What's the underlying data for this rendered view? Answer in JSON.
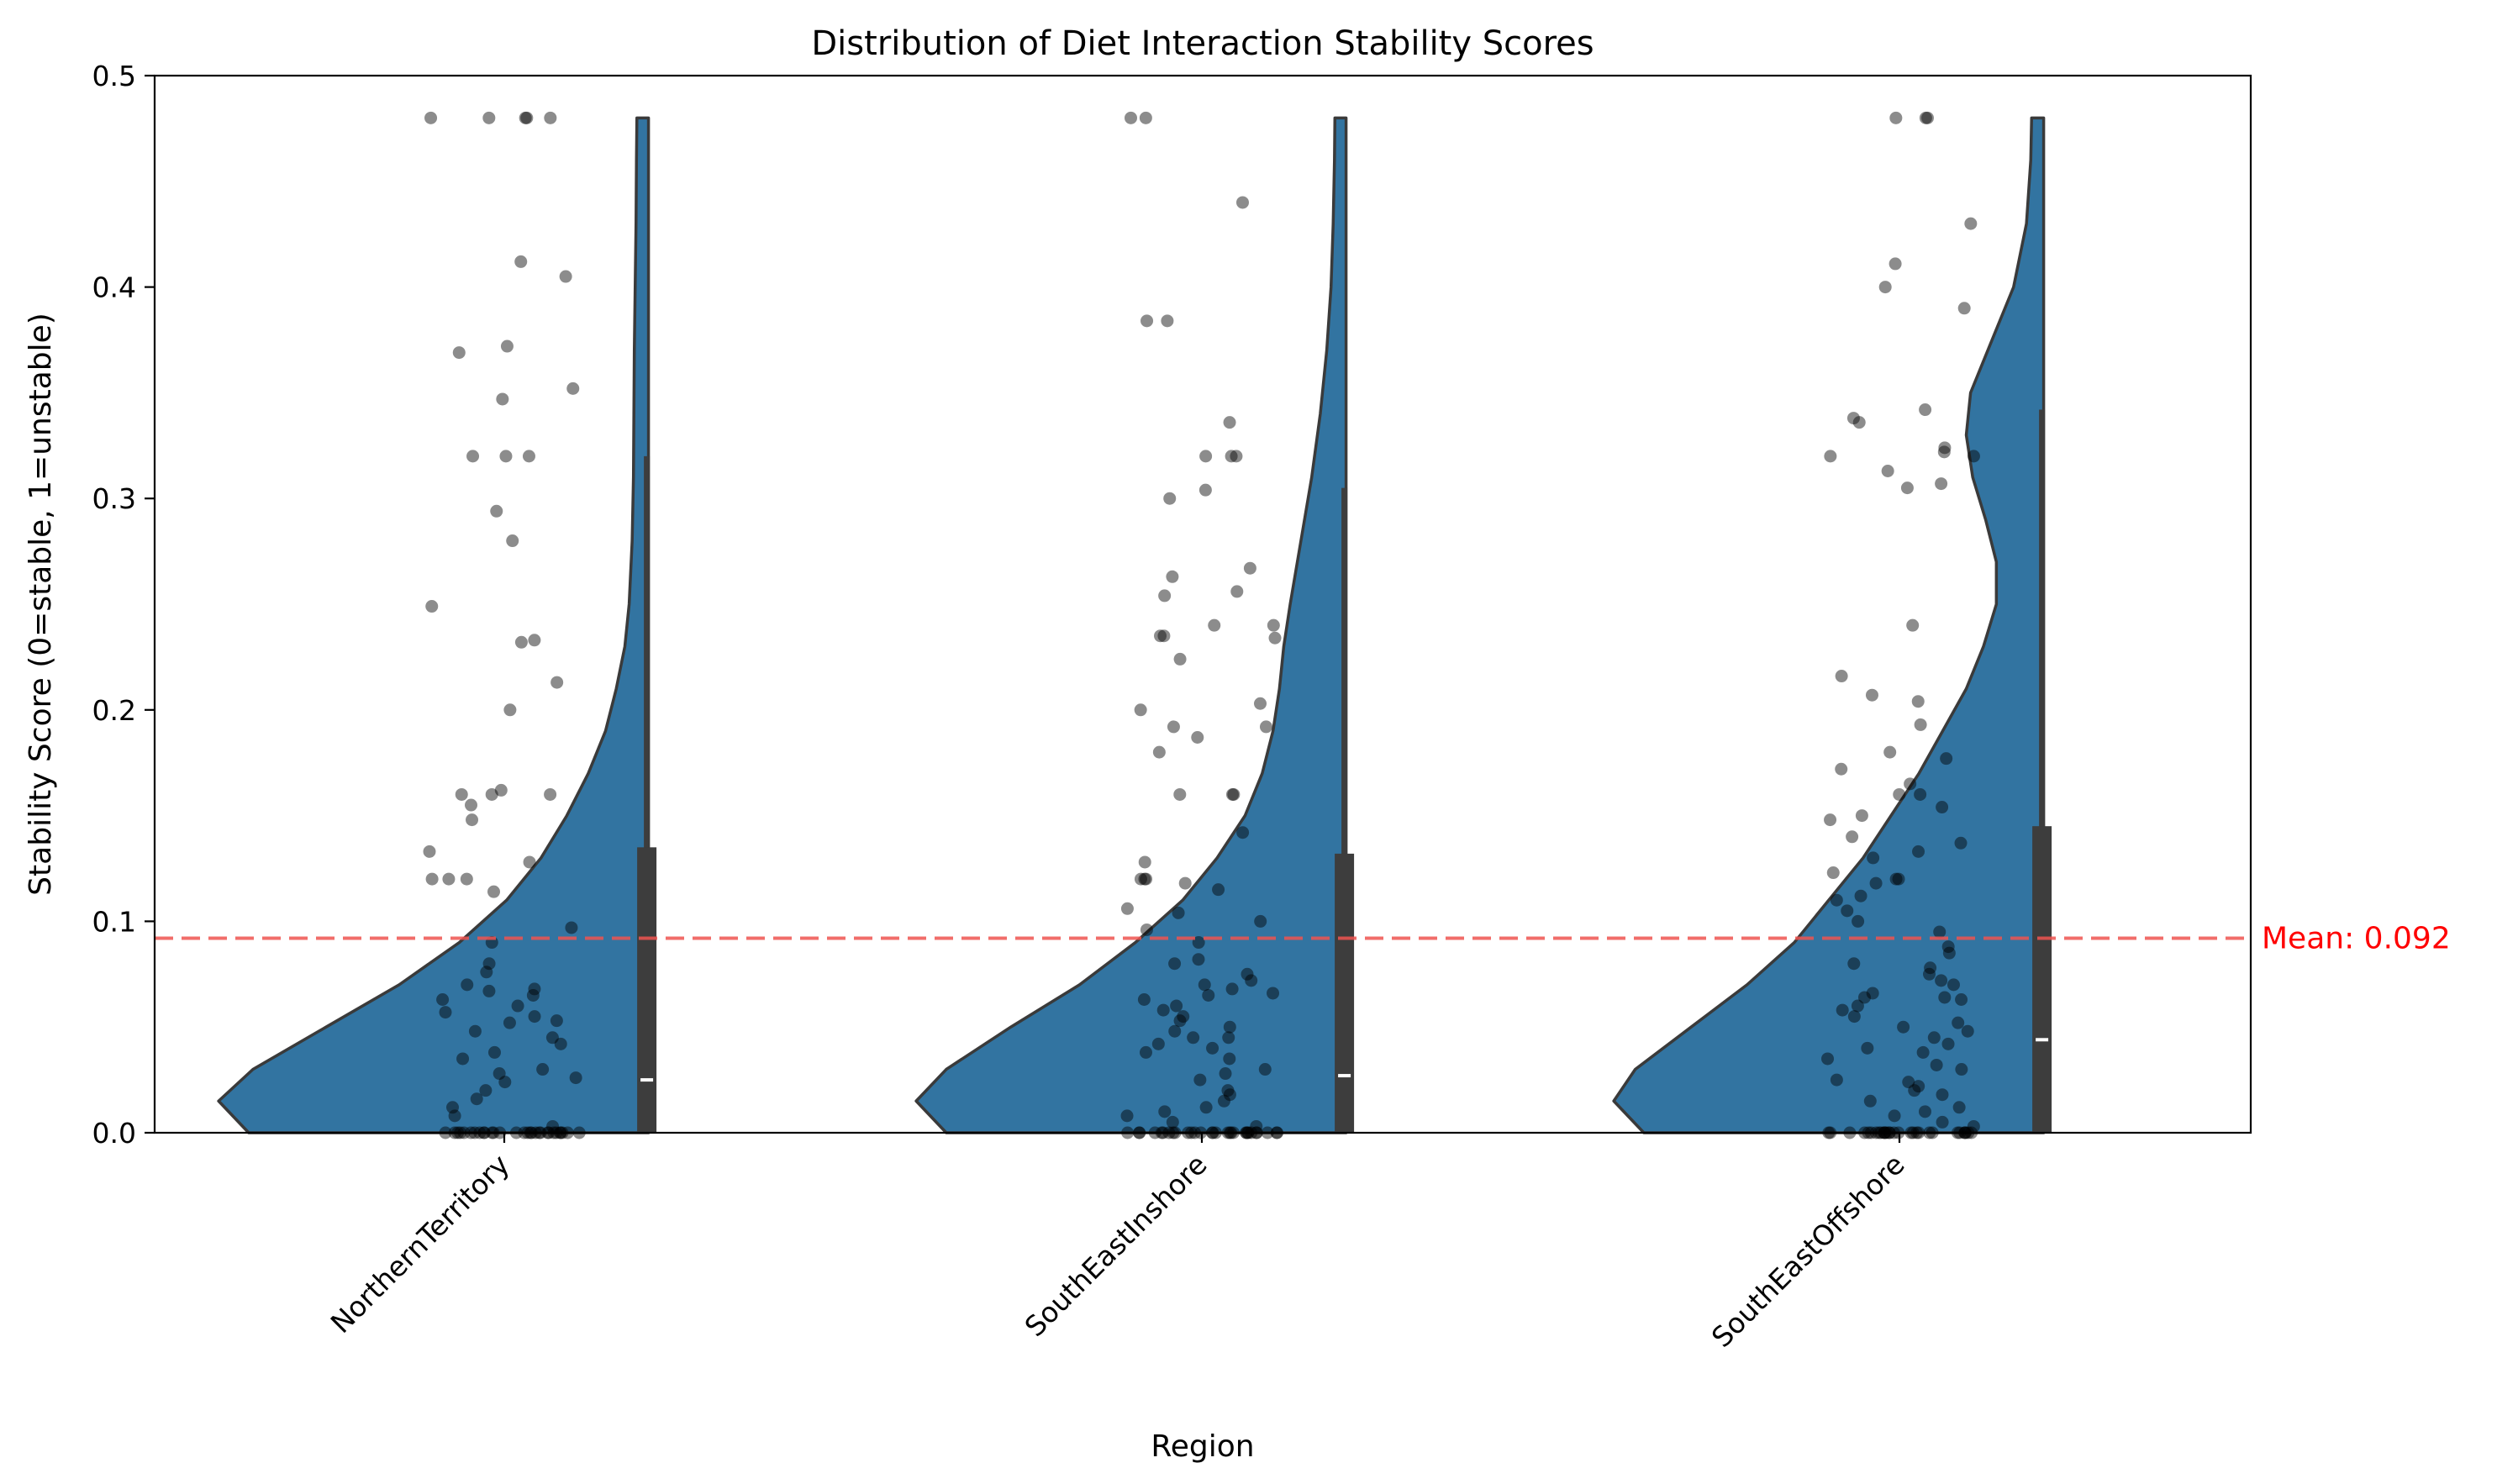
{
  "chart_data": {
    "type": "violin",
    "title": "Distribution of Diet Interaction Stability Scores",
    "xlabel": "Region",
    "ylabel": "Stability Score (0=stable, 1=unstable)",
    "ylim": [
      0,
      0.5
    ],
    "yticks": [
      "0.0",
      "0.1",
      "0.2",
      "0.3",
      "0.4",
      "0.5"
    ],
    "categories": [
      "NorthernTerritory",
      "SouthEastInshore",
      "SouthEastOffshore"
    ],
    "grid": false,
    "mean_line": {
      "value": 0.092,
      "label": "Mean: 0.092",
      "color": "#ef5350"
    },
    "colors": {
      "violin": "#3274a1",
      "violin_edge": "#3a3a3a",
      "box": "#3d3d3d",
      "median": "#ffffff",
      "points": "#555555"
    },
    "series": [
      {
        "name": "NorthernTerritory",
        "median": 0.025,
        "q1": 0.0,
        "q3": 0.135,
        "whisker_low": 0.0,
        "whisker_high": 0.32,
        "density": [
          [
            0.0,
            0.93
          ],
          [
            0.015,
            1.0
          ],
          [
            0.03,
            0.92
          ],
          [
            0.05,
            0.75
          ],
          [
            0.07,
            0.58
          ],
          [
            0.09,
            0.44
          ],
          [
            0.11,
            0.33
          ],
          [
            0.13,
            0.25
          ],
          [
            0.15,
            0.19
          ],
          [
            0.17,
            0.14
          ],
          [
            0.19,
            0.1
          ],
          [
            0.21,
            0.075
          ],
          [
            0.23,
            0.055
          ],
          [
            0.25,
            0.045
          ],
          [
            0.28,
            0.038
          ],
          [
            0.31,
            0.035
          ],
          [
            0.34,
            0.034
          ],
          [
            0.37,
            0.033
          ],
          [
            0.4,
            0.031
          ],
          [
            0.43,
            0.029
          ],
          [
            0.46,
            0.028
          ],
          [
            0.48,
            0.027
          ]
        ],
        "points": [
          0,
          0,
          0,
          0,
          0,
          0,
          0,
          0,
          0,
          0,
          0,
          0,
          0,
          0,
          0,
          0,
          0,
          0,
          0,
          0,
          0,
          0,
          0,
          0,
          0,
          0,
          0,
          0,
          0,
          0,
          0.003,
          0.008,
          0.012,
          0.016,
          0.02,
          0.024,
          0.026,
          0.028,
          0.03,
          0.035,
          0.038,
          0.042,
          0.045,
          0.048,
          0.052,
          0.053,
          0.055,
          0.057,
          0.06,
          0.063,
          0.065,
          0.067,
          0.068,
          0.07,
          0.076,
          0.08,
          0.09,
          0.097,
          0.114,
          0.12,
          0.12,
          0.12,
          0.128,
          0.133,
          0.148,
          0.155,
          0.16,
          0.16,
          0.16,
          0.162,
          0.2,
          0.213,
          0.232,
          0.233,
          0.249,
          0.28,
          0.294,
          0.32,
          0.32,
          0.32,
          0.347,
          0.352,
          0.369,
          0.372,
          0.405,
          0.412,
          0.48,
          0.48,
          0.48,
          0.48,
          0.48
        ]
      },
      {
        "name": "SouthEastInshore",
        "median": 0.027,
        "q1": 0.0,
        "q3": 0.132,
        "whisker_low": 0.0,
        "whisker_high": 0.305,
        "density": [
          [
            0.0,
            0.93
          ],
          [
            0.015,
            1.0
          ],
          [
            0.03,
            0.93
          ],
          [
            0.05,
            0.78
          ],
          [
            0.07,
            0.62
          ],
          [
            0.09,
            0.49
          ],
          [
            0.11,
            0.38
          ],
          [
            0.13,
            0.3
          ],
          [
            0.15,
            0.235
          ],
          [
            0.17,
            0.195
          ],
          [
            0.19,
            0.17
          ],
          [
            0.21,
            0.155
          ],
          [
            0.23,
            0.145
          ],
          [
            0.25,
            0.13
          ],
          [
            0.28,
            0.105
          ],
          [
            0.31,
            0.08
          ],
          [
            0.34,
            0.06
          ],
          [
            0.37,
            0.045
          ],
          [
            0.4,
            0.035
          ],
          [
            0.43,
            0.03
          ],
          [
            0.46,
            0.027
          ],
          [
            0.48,
            0.026
          ]
        ],
        "points": [
          0,
          0,
          0,
          0,
          0,
          0,
          0,
          0,
          0,
          0,
          0,
          0,
          0,
          0,
          0,
          0,
          0,
          0,
          0,
          0,
          0,
          0,
          0,
          0,
          0,
          0,
          0,
          0,
          0,
          0,
          0.003,
          0.005,
          0.008,
          0.01,
          0.012,
          0.015,
          0.018,
          0.02,
          0.025,
          0.028,
          0.03,
          0.035,
          0.038,
          0.04,
          0.042,
          0.045,
          0.045,
          0.048,
          0.05,
          0.053,
          0.055,
          0.058,
          0.06,
          0.063,
          0.065,
          0.066,
          0.068,
          0.07,
          0.072,
          0.075,
          0.08,
          0.082,
          0.09,
          0.096,
          0.1,
          0.104,
          0.106,
          0.115,
          0.118,
          0.12,
          0.12,
          0.12,
          0.128,
          0.142,
          0.16,
          0.16,
          0.16,
          0.18,
          0.187,
          0.192,
          0.192,
          0.2,
          0.203,
          0.224,
          0.234,
          0.235,
          0.235,
          0.24,
          0.24,
          0.254,
          0.256,
          0.263,
          0.267,
          0.3,
          0.304,
          0.32,
          0.32,
          0.32,
          0.336,
          0.384,
          0.384,
          0.44,
          0.48,
          0.48
        ]
      },
      {
        "name": "SouthEastOffshore",
        "median": 0.044,
        "q1": 0.0,
        "q3": 0.145,
        "whisker_low": 0.0,
        "whisker_high": 0.342,
        "density": [
          [
            0.0,
            0.93
          ],
          [
            0.015,
            1.0
          ],
          [
            0.03,
            0.95
          ],
          [
            0.05,
            0.82
          ],
          [
            0.07,
            0.69
          ],
          [
            0.09,
            0.58
          ],
          [
            0.11,
            0.5
          ],
          [
            0.13,
            0.42
          ],
          [
            0.15,
            0.355
          ],
          [
            0.17,
            0.29
          ],
          [
            0.19,
            0.235
          ],
          [
            0.21,
            0.18
          ],
          [
            0.23,
            0.14
          ],
          [
            0.25,
            0.11
          ],
          [
            0.27,
            0.11
          ],
          [
            0.29,
            0.135
          ],
          [
            0.31,
            0.165
          ],
          [
            0.33,
            0.18
          ],
          [
            0.35,
            0.17
          ],
          [
            0.37,
            0.13
          ],
          [
            0.4,
            0.07
          ],
          [
            0.43,
            0.04
          ],
          [
            0.46,
            0.03
          ],
          [
            0.48,
            0.028
          ]
        ],
        "points": [
          0,
          0,
          0,
          0,
          0,
          0,
          0,
          0,
          0,
          0,
          0,
          0,
          0,
          0,
          0,
          0,
          0,
          0,
          0,
          0,
          0,
          0,
          0,
          0,
          0,
          0,
          0,
          0,
          0,
          0,
          0.003,
          0.005,
          0.008,
          0.01,
          0.012,
          0.015,
          0.018,
          0.02,
          0.022,
          0.024,
          0.025,
          0.03,
          0.032,
          0.035,
          0.038,
          0.04,
          0.042,
          0.045,
          0.048,
          0.05,
          0.052,
          0.055,
          0.058,
          0.06,
          0.063,
          0.064,
          0.064,
          0.066,
          0.07,
          0.072,
          0.075,
          0.078,
          0.08,
          0.085,
          0.088,
          0.095,
          0.1,
          0.105,
          0.11,
          0.112,
          0.118,
          0.12,
          0.12,
          0.123,
          0.13,
          0.133,
          0.137,
          0.14,
          0.148,
          0.15,
          0.154,
          0.16,
          0.16,
          0.165,
          0.172,
          0.177,
          0.18,
          0.193,
          0.204,
          0.207,
          0.216,
          0.24,
          0.305,
          0.307,
          0.313,
          0.32,
          0.32,
          0.322,
          0.324,
          0.336,
          0.338,
          0.342,
          0.39,
          0.4,
          0.411,
          0.43,
          0.48,
          0.48,
          0.48
        ]
      }
    ]
  }
}
